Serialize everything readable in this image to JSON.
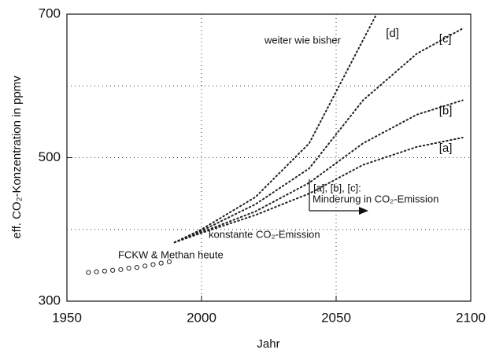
{
  "chart_data": {
    "type": "line",
    "x_label": "Jahr",
    "y_label": "eff. CO₂-Konzentration in ppmv",
    "xlim": [
      1950,
      2100
    ],
    "xticks": [
      1950,
      2000,
      2050,
      2100
    ],
    "ylim": [
      300,
      700
    ],
    "yticks": [
      300,
      500,
      700
    ],
    "xgrid": [
      2000,
      2050
    ],
    "ygrid": [
      400,
      500,
      600
    ],
    "series": [
      {
        "style": "markers",
        "color": "#222222",
        "x": [
          1958,
          1961,
          1964,
          1967,
          1970,
          1973,
          1976,
          1979,
          1982,
          1985,
          1988
        ],
        "values": [
          340,
          341,
          342,
          343,
          344,
          346,
          347,
          349,
          351,
          353,
          355
        ]
      },
      {
        "name": "[d]",
        "style": "dotted",
        "color": "#222222",
        "x": [
          1990,
          2000,
          2020,
          2040,
          2065
        ],
        "values": [
          382,
          400,
          445,
          520,
          700
        ]
      },
      {
        "name": "[c]",
        "style": "dotted",
        "color": "#222222",
        "x": [
          1990,
          2000,
          2020,
          2040,
          2060,
          2080,
          2097
        ],
        "values": [
          382,
          398,
          435,
          485,
          580,
          645,
          680
        ]
      },
      {
        "name": "[b]",
        "style": "dotted",
        "color": "#222222",
        "x": [
          1990,
          2000,
          2020,
          2040,
          2060,
          2080,
          2097
        ],
        "values": [
          382,
          396,
          425,
          465,
          520,
          560,
          580
        ]
      },
      {
        "name": "[a]",
        "style": "dotted",
        "color": "#222222",
        "x": [
          1990,
          2000,
          2020,
          2040,
          2060,
          2080,
          2097
        ],
        "values": [
          382,
          395,
          420,
          450,
          490,
          515,
          528
        ]
      }
    ],
    "annotations": [
      "weiter wie bisher",
      "[a], [b], [c]:",
      "Minderung in CO₂-Emission",
      "konstante CO₂-Emission",
      "FCKW & Methan heute"
    ]
  }
}
